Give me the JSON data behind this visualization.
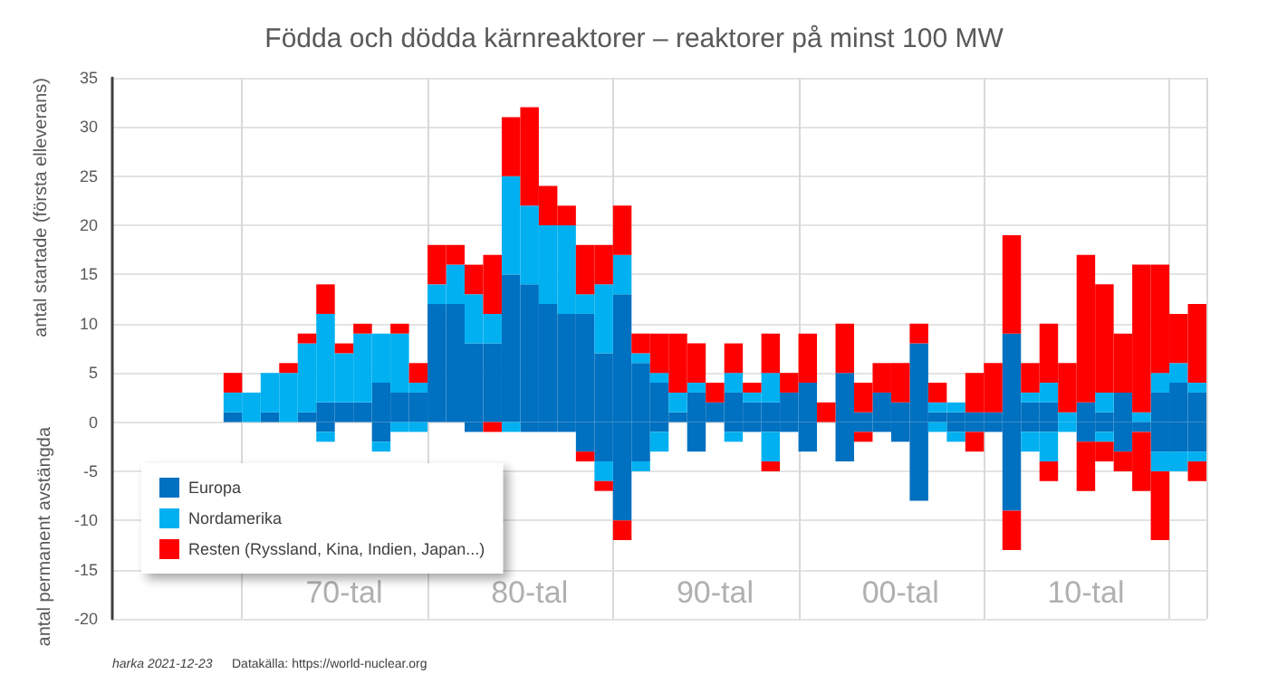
{
  "chart_data": {
    "type": "bar",
    "title": "Födda och dödda kärnreaktorer – reaktorer på minst 100 MW",
    "ylabel": "antal startade (första elleverans)",
    "annotations": [
      "antal permanent avstängda",
      "harka 2021-12-23",
      "Datakälla: https://world-nuclear.org"
    ],
    "categories": [
      null,
      null,
      null,
      null,
      null,
      null,
      null,
      null,
      null,
      null,
      null,
      null,
      "70-tal",
      null,
      null,
      null,
      null,
      null,
      null,
      null,
      null,
      null,
      "80-tal",
      null,
      null,
      null,
      null,
      null,
      null,
      null,
      null,
      null,
      "90-tal",
      null,
      null,
      null,
      null,
      null,
      null,
      null,
      null,
      null,
      "00-tal",
      null,
      null,
      null,
      null,
      null,
      null,
      null,
      null,
      null,
      "10-tal",
      null,
      null,
      null,
      null,
      null,
      null
    ],
    "stacked": true,
    "ylim": [
      -20,
      35
    ],
    "yticks": [
      -20,
      -15,
      -10,
      -5,
      0,
      5,
      10,
      15,
      20,
      25,
      30,
      35
    ],
    "grid": true,
    "legend": "bottom left",
    "series": [
      {
        "name": "Europa",
        "color": "#0070c0",
        "values": [
          null,
          null,
          null,
          null,
          null,
          null,
          1,
          0,
          1,
          0,
          1,
          2,
          2,
          2,
          4,
          3,
          3,
          12,
          12,
          8,
          8,
          15,
          14,
          12,
          11,
          11,
          7,
          13,
          6,
          4,
          1,
          3,
          2,
          3,
          2,
          2,
          3,
          4,
          0,
          5,
          1,
          3,
          2,
          8,
          1,
          1,
          1,
          1,
          9,
          2,
          2,
          0,
          2,
          1,
          3,
          0,
          3,
          4,
          3
        ]
      },
      {
        "name": "Nordamerika",
        "color": "#00b0f0",
        "values": [
          null,
          null,
          null,
          null,
          null,
          null,
          2,
          3,
          4,
          5,
          7,
          9,
          5,
          7,
          5,
          6,
          1,
          2,
          4,
          5,
          3,
          10,
          8,
          8,
          9,
          2,
          7,
          4,
          1,
          1,
          2,
          1,
          0,
          2,
          1,
          3,
          0,
          0,
          0,
          0,
          0,
          0,
          0,
          0,
          1,
          1,
          0,
          0,
          0,
          1,
          2,
          1,
          0,
          2,
          0,
          1,
          2,
          2,
          1
        ]
      },
      {
        "name": "Resten (Ryssland, Kina, Indien, Japan...)",
        "color": "#ff0000",
        "values": [
          null,
          null,
          null,
          null,
          null,
          null,
          2,
          0,
          0,
          1,
          1,
          3,
          1,
          1,
          0,
          1,
          2,
          4,
          2,
          3,
          6,
          6,
          10,
          4,
          2,
          5,
          4,
          5,
          2,
          4,
          6,
          4,
          2,
          3,
          1,
          4,
          2,
          5,
          2,
          5,
          3,
          3,
          4,
          2,
          2,
          0,
          4,
          5,
          10,
          3,
          6,
          5,
          15,
          11,
          6,
          15,
          11,
          5,
          8
        ]
      },
      {
        "color": "#0070c0",
        "values": [
          null,
          null,
          null,
          null,
          null,
          null,
          0,
          0,
          0,
          0,
          0,
          -1,
          0,
          0,
          -2,
          0,
          0,
          0,
          0,
          -1,
          0,
          0,
          -1,
          -1,
          -1,
          -3,
          -4,
          -10,
          -4,
          -1,
          0,
          -3,
          0,
          -1,
          -1,
          -1,
          -1,
          -3,
          0,
          -4,
          -1,
          -1,
          -2,
          -8,
          0,
          -1,
          -1,
          -1,
          -9,
          -1,
          -1,
          0,
          -2,
          -1,
          -3,
          -1,
          -3,
          -3,
          -3
        ]
      },
      {
        "color": "#00b0f0",
        "values": [
          null,
          null,
          null,
          null,
          null,
          null,
          0,
          0,
          0,
          0,
          0,
          -1,
          0,
          0,
          -1,
          -1,
          -1,
          0,
          0,
          0,
          0,
          -1,
          0,
          0,
          0,
          0,
          -2,
          0,
          -1,
          -2,
          0,
          0,
          0,
          -1,
          0,
          -3,
          0,
          0,
          0,
          0,
          0,
          0,
          0,
          0,
          -1,
          -1,
          0,
          0,
          0,
          -2,
          -3,
          -1,
          0,
          -1,
          0,
          0,
          -2,
          -2,
          -1
        ]
      },
      {
        "color": "#ff0000",
        "values": [
          null,
          null,
          null,
          null,
          null,
          null,
          0,
          0,
          0,
          0,
          0,
          0,
          0,
          0,
          0,
          0,
          0,
          0,
          0,
          0,
          -1,
          0,
          0,
          0,
          0,
          -1,
          -1,
          -2,
          0,
          0,
          0,
          0,
          0,
          0,
          0,
          -1,
          0,
          0,
          0,
          0,
          -1,
          0,
          0,
          0,
          0,
          0,
          -2,
          0,
          -4,
          0,
          -2,
          0,
          -5,
          -2,
          -2,
          -6,
          -7,
          0,
          -2
        ]
      }
    ]
  }
}
